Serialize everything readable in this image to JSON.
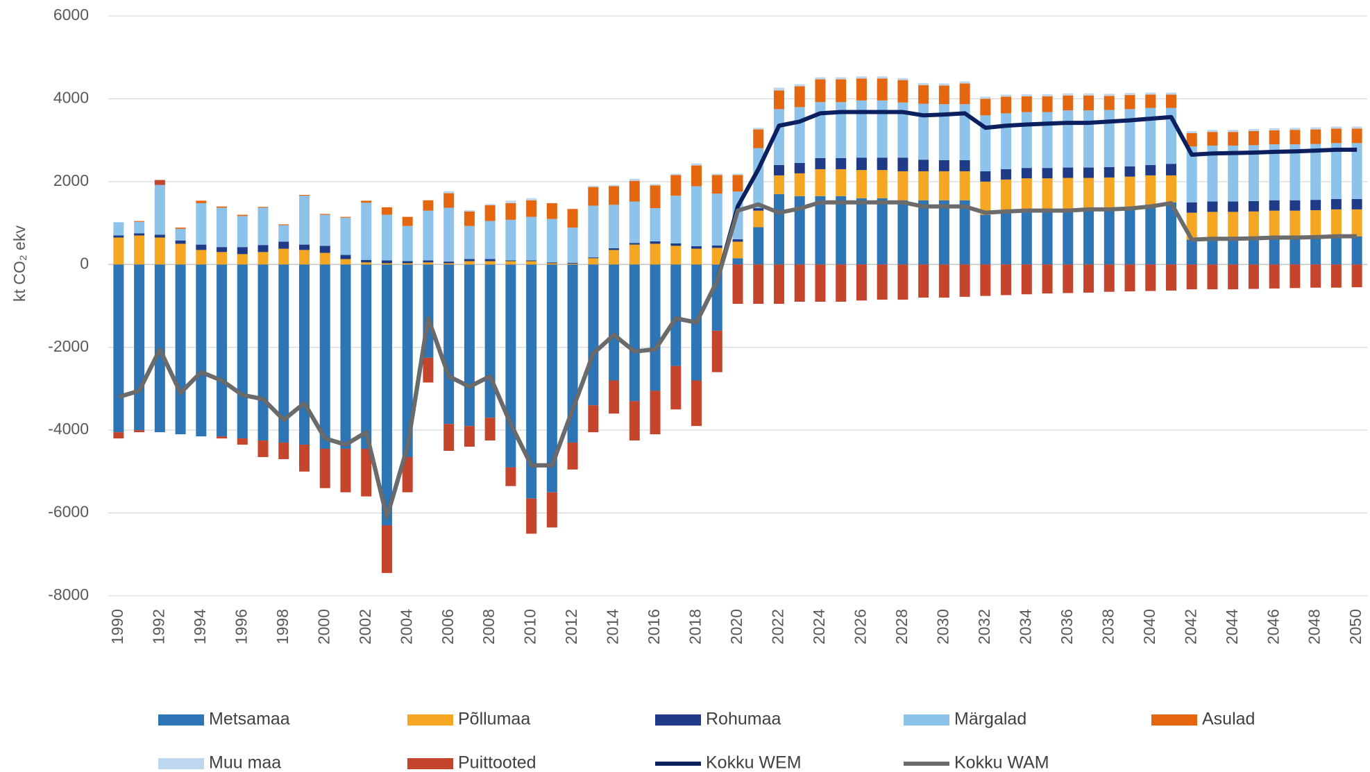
{
  "chart_data": {
    "type": "stacked-bar-line",
    "y_label": "kt CO₂ ekv",
    "x": [
      1990,
      1991,
      1992,
      1993,
      1994,
      1995,
      1996,
      1997,
      1998,
      1999,
      2000,
      2001,
      2002,
      2003,
      2004,
      2005,
      2006,
      2007,
      2008,
      2009,
      2010,
      2011,
      2012,
      2013,
      2014,
      2015,
      2016,
      2017,
      2018,
      2019,
      2020,
      2021,
      2022,
      2023,
      2024,
      2025,
      2026,
      2027,
      2028,
      2029,
      2030,
      2031,
      2032,
      2033,
      2034,
      2035,
      2036,
      2037,
      2038,
      2039,
      2040,
      2041,
      2042,
      2043,
      2044,
      2045,
      2046,
      2047,
      2048,
      2049,
      2050
    ],
    "xlim": [
      1989.5,
      2050.5
    ],
    "xticks": [
      1990,
      1992,
      1994,
      1996,
      1998,
      2000,
      2002,
      2004,
      2006,
      2008,
      2010,
      2012,
      2014,
      2016,
      2018,
      2020,
      2022,
      2024,
      2026,
      2028,
      2030,
      2032,
      2034,
      2036,
      2038,
      2040,
      2042,
      2044,
      2046,
      2048,
      2050
    ],
    "ylim": [
      -8000,
      6000
    ],
    "yticks": [
      -8000,
      -6000,
      -4000,
      -2000,
      0,
      2000,
      4000,
      6000
    ],
    "grid": true,
    "series": [
      {
        "name": "Metsamaa",
        "type": "bar",
        "color": "#2e75b6",
        "values": [
          -4050,
          -4000,
          -4050,
          -4100,
          -4150,
          -4150,
          -4200,
          -4250,
          -4300,
          -4350,
          -4450,
          -4450,
          -4450,
          -6300,
          -4650,
          -2250,
          -3850,
          -3900,
          -3700,
          -4900,
          -5650,
          -5500,
          -4300,
          -3400,
          -2800,
          -3300,
          -3050,
          -2450,
          -2800,
          -1600,
          150,
          900,
          1700,
          1650,
          1650,
          1650,
          1600,
          1600,
          1550,
          1550,
          1550,
          1550,
          1200,
          1250,
          1300,
          1300,
          1330,
          1330,
          1350,
          1400,
          1450,
          1500,
          600,
          620,
          620,
          630,
          650,
          650,
          660,
          680,
          680
        ]
      },
      {
        "name": "Põllumaa",
        "type": "bar",
        "color": "#f5a623",
        "values": [
          650,
          700,
          650,
          500,
          350,
          300,
          250,
          300,
          380,
          350,
          280,
          130,
          50,
          30,
          30,
          50,
          30,
          80,
          80,
          80,
          80,
          30,
          20,
          150,
          350,
          480,
          500,
          450,
          380,
          400,
          400,
          400,
          450,
          550,
          650,
          650,
          680,
          680,
          700,
          700,
          700,
          700,
          800,
          800,
          780,
          780,
          760,
          760,
          750,
          720,
          700,
          650,
          650,
          650,
          650,
          650,
          650,
          650,
          650,
          650,
          650
        ]
      },
      {
        "name": "Rohumaa",
        "type": "bar",
        "color": "#1f3b87",
        "values": [
          50,
          50,
          70,
          80,
          130,
          120,
          170,
          170,
          170,
          130,
          170,
          100,
          60,
          70,
          50,
          50,
          40,
          50,
          50,
          20,
          20,
          20,
          20,
          20,
          40,
          40,
          60,
          60,
          60,
          60,
          60,
          60,
          250,
          250,
          270,
          270,
          300,
          300,
          330,
          280,
          270,
          270,
          250,
          250,
          250,
          250,
          250,
          250,
          250,
          250,
          250,
          280,
          250,
          250,
          250,
          250,
          250,
          250,
          250,
          250,
          250
        ]
      },
      {
        "name": "Märgalad",
        "type": "bar",
        "color": "#8dc3ea",
        "values": [
          320,
          280,
          1200,
          280,
          1000,
          950,
          750,
          900,
          400,
          1180,
          750,
          900,
          1380,
          1100,
          850,
          1200,
          1300,
          800,
          920,
          980,
          1050,
          1050,
          850,
          1250,
          1050,
          1000,
          800,
          1150,
          1450,
          1250,
          1150,
          1450,
          1350,
          1350,
          1350,
          1350,
          1380,
          1380,
          1330,
          1350,
          1350,
          1350,
          1350,
          1350,
          1350,
          1350,
          1380,
          1380,
          1380,
          1380,
          1380,
          1350,
          1350,
          1350,
          1350,
          1350,
          1350,
          1350,
          1350,
          1350,
          1350
        ]
      },
      {
        "name": "Asulad",
        "type": "bar",
        "color": "#e4660f",
        "values": [
          0,
          20,
          0,
          30,
          60,
          30,
          30,
          20,
          20,
          20,
          20,
          20,
          50,
          180,
          220,
          250,
          350,
          350,
          380,
          400,
          400,
          380,
          450,
          450,
          450,
          500,
          550,
          500,
          500,
          450,
          400,
          450,
          450,
          500,
          550,
          550,
          530,
          530,
          540,
          450,
          450,
          500,
          400,
          400,
          380,
          380,
          360,
          360,
          340,
          340,
          320,
          320,
          320,
          330,
          330,
          340,
          340,
          350,
          350,
          350,
          350
        ]
      },
      {
        "name": "Muu maa",
        "type": "bar",
        "color": "#bdd7ee",
        "values": [
          0,
          0,
          0,
          0,
          0,
          0,
          0,
          0,
          0,
          0,
          0,
          0,
          0,
          0,
          0,
          0,
          50,
          30,
          30,
          60,
          50,
          0,
          0,
          30,
          30,
          50,
          30,
          30,
          50,
          30,
          30,
          40,
          70,
          50,
          50,
          50,
          50,
          50,
          50,
          50,
          50,
          50,
          50,
          50,
          50,
          50,
          50,
          50,
          50,
          50,
          50,
          50,
          50,
          50,
          50,
          50,
          50,
          50,
          50,
          50,
          50
        ]
      },
      {
        "name": "Puittooted",
        "type": "bar",
        "color": "#c4442c",
        "values": [
          -150,
          -50,
          120,
          0,
          0,
          -50,
          -150,
          -400,
          -400,
          -650,
          -950,
          -1050,
          -1150,
          -1150,
          -850,
          -600,
          -650,
          -500,
          -550,
          -450,
          -850,
          -850,
          -650,
          -650,
          -800,
          -950,
          -1050,
          -1050,
          -1100,
          -1000,
          -950,
          -950,
          -950,
          -900,
          -900,
          -900,
          -870,
          -850,
          -850,
          -800,
          -800,
          -780,
          -760,
          -740,
          -720,
          -700,
          -690,
          -680,
          -660,
          -650,
          -640,
          -630,
          -600,
          -600,
          -600,
          -590,
          -580,
          -570,
          -560,
          -560,
          -550
        ]
      },
      {
        "name": "Kokku WEM",
        "type": "line",
        "color": "#0c1f5e",
        "values": [
          -3200,
          -3050,
          -2050,
          -3100,
          -2600,
          -2800,
          -3150,
          -3250,
          -3750,
          -3350,
          -4200,
          -4350,
          -4050,
          -6100,
          -4400,
          -1300,
          -2700,
          -2950,
          -2700,
          -3850,
          -4850,
          -4850,
          -3500,
          -2150,
          -1700,
          -2100,
          -2050,
          -1300,
          -1400,
          -400,
          1400,
          2300,
          3350,
          3450,
          3650,
          3680,
          3680,
          3680,
          3680,
          3600,
          3620,
          3650,
          3300,
          3350,
          3380,
          3400,
          3420,
          3420,
          3450,
          3480,
          3520,
          3560,
          2650,
          2680,
          2690,
          2700,
          2720,
          2730,
          2750,
          2770,
          2770
        ]
      },
      {
        "name": "Kokku WAM",
        "type": "line",
        "color": "#6b6b6b",
        "values": [
          -3200,
          -3050,
          -2050,
          -3100,
          -2600,
          -2800,
          -3150,
          -3250,
          -3750,
          -3350,
          -4200,
          -4350,
          -4050,
          -6100,
          -4400,
          -1300,
          -2700,
          -2950,
          -2700,
          -3850,
          -4850,
          -4850,
          -3500,
          -2150,
          -1700,
          -2100,
          -2050,
          -1300,
          -1400,
          -400,
          1300,
          1450,
          1250,
          1350,
          1500,
          1500,
          1500,
          1500,
          1500,
          1400,
          1400,
          1400,
          1250,
          1280,
          1300,
          1300,
          1300,
          1330,
          1330,
          1350,
          1400,
          1480,
          600,
          620,
          620,
          630,
          650,
          650,
          660,
          680,
          680
        ]
      }
    ]
  }
}
